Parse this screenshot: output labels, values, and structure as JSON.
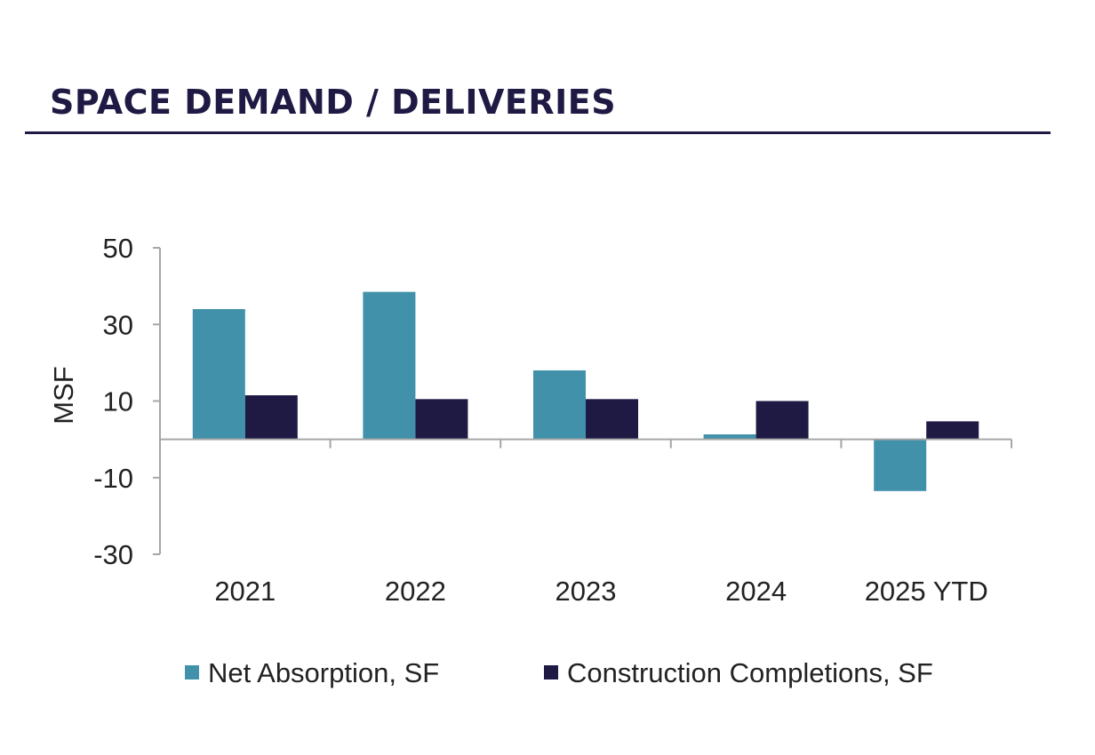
{
  "title": "SPACE DEMAND / DELIVERIES",
  "colors": {
    "title": "#1e1a44",
    "net_absorption": "#4191ab",
    "construction_completions": "#1e1a44",
    "axis": "#a6a6a6"
  },
  "chart_data": {
    "type": "bar",
    "categories": [
      "2021",
      "2022",
      "2023",
      "2024",
      "2025 YTD"
    ],
    "series": [
      {
        "name": "Net Absorption, SF",
        "values": [
          34,
          38.5,
          18,
          1.3,
          -13.5
        ]
      },
      {
        "name": "Construction Completions, SF",
        "values": [
          11.5,
          10.5,
          10.5,
          10,
          4.7
        ]
      }
    ],
    "ylabel": "MSF",
    "xlabel": "",
    "ylim": [
      -30,
      50
    ],
    "yticks": [
      50,
      30,
      10,
      -10,
      -30
    ],
    "legend": "bottom",
    "grid": false
  }
}
